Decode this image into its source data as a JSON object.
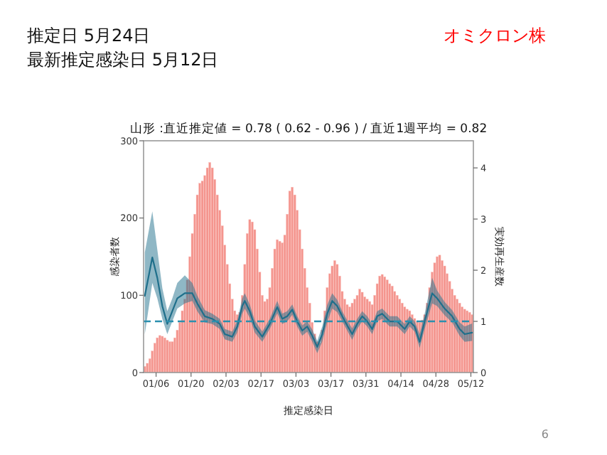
{
  "chart_data": {
    "type": "bar",
    "title": "山形 :直近推定値 = 0.78 ( 0.62 - 0.96 ) / 直近1週平均 = 0.82",
    "xlabel": "推定感染日",
    "ylabel": "感染者数",
    "y2label": "実効再生産数",
    "annotations": [
      "推定日  5月24日",
      "最新推定感染日  5月12日",
      "オミクロン株",
      "6"
    ],
    "xlim": [
      "--01-01",
      "--05-13"
    ],
    "xticks": [
      {
        "value": "--01-06",
        "label": "01/06"
      },
      {
        "value": "--01-20",
        "label": "01/20"
      },
      {
        "value": "--02-03",
        "label": "02/03"
      },
      {
        "value": "--02-17",
        "label": "02/17"
      },
      {
        "value": "--03-03",
        "label": "03/03"
      },
      {
        "value": "--03-17",
        "label": "03/17"
      },
      {
        "value": "--03-31",
        "label": "03/31"
      },
      {
        "value": "--04-14",
        "label": "04/14"
      },
      {
        "value": "--04-28",
        "label": "04/28"
      },
      {
        "value": "--05-12",
        "label": "05/12"
      }
    ],
    "ylim": [
      0,
      300
    ],
    "yticks": [
      0,
      100,
      200,
      300
    ],
    "y2lim": [
      0,
      4.53
    ],
    "y2ticks": [
      0,
      1,
      2,
      3,
      4
    ],
    "grid": false,
    "ref_lines": [
      {
        "axis": "y2",
        "value": 1,
        "color": "#2a8fae",
        "line_style": "dashed"
      }
    ],
    "x": [
      "--01-01",
      "--01-02",
      "--01-03",
      "--01-04",
      "--01-05",
      "--01-06",
      "--01-07",
      "--01-08",
      "--01-09",
      "--01-10",
      "--01-11",
      "--01-12",
      "--01-13",
      "--01-14",
      "--01-15",
      "--01-16",
      "--01-17",
      "--01-18",
      "--01-19",
      "--01-20",
      "--01-21",
      "--01-22",
      "--01-23",
      "--01-24",
      "--01-25",
      "--01-26",
      "--01-27",
      "--01-28",
      "--01-29",
      "--01-30",
      "--01-31",
      "--02-01",
      "--02-02",
      "--02-03",
      "--02-04",
      "--02-05",
      "--02-06",
      "--02-07",
      "--02-08",
      "--02-09",
      "--02-10",
      "--02-11",
      "--02-12",
      "--02-13",
      "--02-14",
      "--02-15",
      "--02-16",
      "--02-17",
      "--02-18",
      "--02-19",
      "--02-20",
      "--02-21",
      "--02-22",
      "--02-23",
      "--02-24",
      "--02-25",
      "--02-26",
      "--02-27",
      "--02-28",
      "--03-01",
      "--03-02",
      "--03-03",
      "--03-04",
      "--03-05",
      "--03-06",
      "--03-07",
      "--03-08",
      "--03-09",
      "--03-10",
      "--03-11",
      "--03-12",
      "--03-13",
      "--03-14",
      "--03-15",
      "--03-16",
      "--03-17",
      "--03-18",
      "--03-19",
      "--03-20",
      "--03-21",
      "--03-22",
      "--03-23",
      "--03-24",
      "--03-25",
      "--03-26",
      "--03-27",
      "--03-28",
      "--03-29",
      "--03-30",
      "--03-31",
      "--04-01",
      "--04-02",
      "--04-03",
      "--04-04",
      "--04-05",
      "--04-06",
      "--04-07",
      "--04-08",
      "--04-09",
      "--04-10",
      "--04-11",
      "--04-12",
      "--04-13",
      "--04-14",
      "--04-15",
      "--04-16",
      "--04-17",
      "--04-18",
      "--04-19",
      "--04-20",
      "--04-21",
      "--04-22",
      "--04-23",
      "--04-24",
      "--04-25",
      "--04-26",
      "--04-27",
      "--04-28",
      "--04-29",
      "--04-30",
      "--05-01",
      "--05-02",
      "--05-03",
      "--05-04",
      "--05-05",
      "--05-06",
      "--05-07",
      "--05-08",
      "--05-09",
      "--05-10",
      "--05-11",
      "--05-12"
    ],
    "series": [
      {
        "color": "#f4958e",
        "values": [
          8,
          12,
          18,
          28,
          38,
          45,
          48,
          47,
          45,
          42,
          40,
          40,
          45,
          55,
          65,
          80,
          95,
          120,
          150,
          180,
          205,
          230,
          245,
          248,
          255,
          265,
          272,
          265,
          250,
          230,
          210,
          190,
          165,
          140,
          115,
          95,
          80,
          75,
          78,
          100,
          140,
          180,
          198,
          195,
          185,
          160,
          130,
          100,
          92,
          95,
          110,
          135,
          160,
          172,
          170,
          168,
          178,
          205,
          235,
          240,
          230,
          210,
          185,
          160,
          135,
          110,
          90,
          65,
          50,
          40,
          38,
          55,
          80,
          110,
          128,
          138,
          145,
          140,
          125,
          105,
          95,
          88,
          85,
          90,
          95,
          100,
          108,
          104,
          98,
          95,
          92,
          88,
          100,
          115,
          125,
          127,
          124,
          120,
          115,
          112,
          105,
          100,
          95,
          90,
          85,
          82,
          80,
          75,
          70,
          66,
          65,
          68,
          75,
          90,
          110,
          130,
          142,
          150,
          152,
          145,
          138,
          128,
          118,
          108,
          100,
          95,
          90,
          85,
          82,
          80,
          78,
          75
        ]
      },
      {
        "type": "line",
        "axis": "y2",
        "color": "#1f6f8b",
        "x": [
          "--01-01",
          "--01-04",
          "--01-06",
          "--01-08",
          "--01-10",
          "--01-12",
          "--01-14",
          "--01-17",
          "--01-20",
          "--01-22",
          "--01-25",
          "--01-28",
          "--01-31",
          "--02-02",
          "--02-05",
          "--02-07",
          "--02-09",
          "--02-10",
          "--02-12",
          "--02-14",
          "--02-17",
          "--02-20",
          "--02-23",
          "--02-25",
          "--02-27",
          "--03-01",
          "--03-03",
          "--03-05",
          "--03-07",
          "--03-09",
          "--03-11",
          "--03-13",
          "--03-15",
          "--03-17",
          "--03-19",
          "--03-21",
          "--03-23",
          "--03-25",
          "--03-27",
          "--03-29",
          "--03-31",
          "--04-02",
          "--04-04",
          "--04-06",
          "--04-09",
          "--04-12",
          "--04-15",
          "--04-17",
          "--04-19",
          "--04-21",
          "--04-23",
          "--04-26",
          "--04-28",
          "--05-01",
          "--05-04",
          "--05-07",
          "--05-09",
          "--05-12"
        ],
        "values": [
          1.5,
          2.25,
          1.85,
          1.3,
          0.95,
          1.2,
          1.45,
          1.55,
          1.55,
          1.35,
          1.1,
          1.05,
          0.95,
          0.75,
          0.7,
          0.9,
          1.3,
          1.4,
          1.2,
          0.9,
          0.7,
          0.95,
          1.28,
          1.05,
          1.1,
          1.23,
          1.0,
          0.82,
          0.9,
          0.72,
          0.5,
          0.75,
          1.15,
          1.4,
          1.3,
          1.1,
          0.92,
          0.75,
          0.95,
          1.1,
          1.0,
          0.85,
          1.1,
          1.15,
          1.0,
          1.0,
          0.85,
          1.0,
          0.9,
          0.6,
          1.0,
          1.55,
          1.45,
          1.25,
          1.1,
          0.85,
          0.75,
          0.78
        ],
        "lower": [
          0.75,
          1.75,
          1.45,
          1.05,
          0.75,
          1.0,
          1.25,
          1.35,
          1.4,
          1.2,
          0.98,
          0.95,
          0.85,
          0.65,
          0.6,
          0.78,
          1.15,
          1.25,
          1.07,
          0.78,
          0.6,
          0.85,
          1.16,
          0.95,
          1.0,
          1.13,
          0.9,
          0.72,
          0.8,
          0.6,
          0.38,
          0.6,
          0.98,
          1.25,
          1.18,
          1.0,
          0.82,
          0.64,
          0.85,
          1.0,
          0.9,
          0.75,
          1.0,
          1.05,
          0.9,
          0.9,
          0.75,
          0.9,
          0.8,
          0.48,
          0.85,
          1.35,
          1.3,
          1.12,
          0.98,
          0.72,
          0.6,
          0.62
        ],
        "upper": [
          2.35,
          3.15,
          2.4,
          1.65,
          1.2,
          1.45,
          1.75,
          1.9,
          1.75,
          1.5,
          1.22,
          1.15,
          1.05,
          0.85,
          0.8,
          1.02,
          1.45,
          1.55,
          1.33,
          1.02,
          0.8,
          1.05,
          1.4,
          1.15,
          1.2,
          1.33,
          1.1,
          0.92,
          1.0,
          0.84,
          0.62,
          0.9,
          1.32,
          1.55,
          1.42,
          1.2,
          1.02,
          0.86,
          1.05,
          1.2,
          1.1,
          0.95,
          1.2,
          1.25,
          1.1,
          1.1,
          0.95,
          1.1,
          1.0,
          0.75,
          1.15,
          1.85,
          1.6,
          1.38,
          1.22,
          0.98,
          0.9,
          0.96
        ]
      }
    ]
  }
}
